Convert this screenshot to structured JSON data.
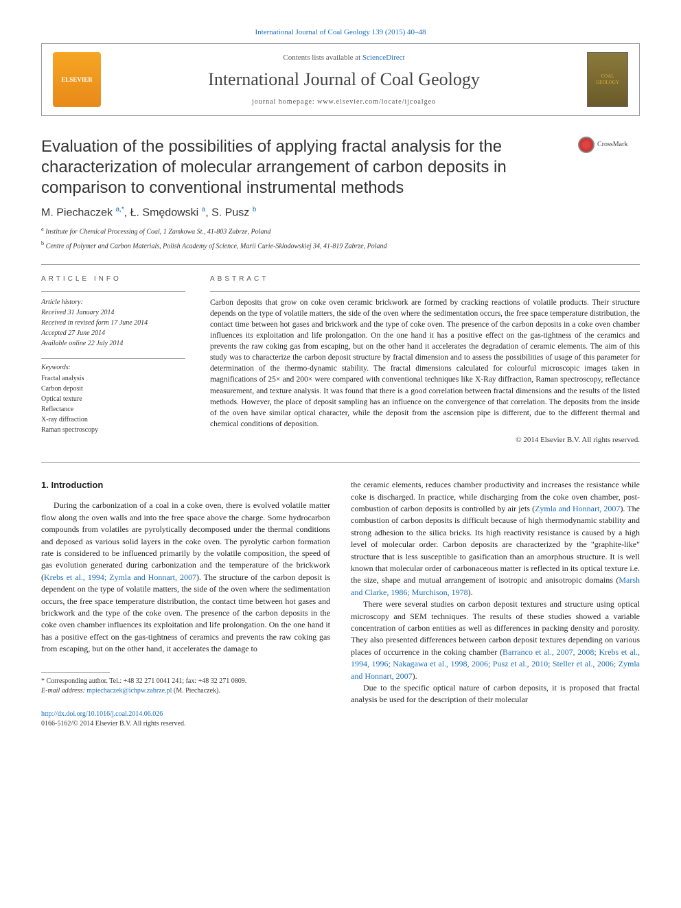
{
  "journal": {
    "top_ref": "International Journal of Coal Geology 139 (2015) 40–48",
    "contents_prefix": "Contents lists available at ",
    "contents_link": "ScienceDirect",
    "name": "International Journal of Coal Geology",
    "homepage_label": "journal homepage: www.elsevier.com/locate/ijcoalgeo",
    "elsevier_label": "ELSEVIER",
    "cover_alt_line1": "COAL",
    "cover_alt_line2": "GEOLOGY"
  },
  "crossmark_label": "CrossMark",
  "article": {
    "title": "Evaluation of the possibilities of applying fractal analysis for the characterization of molecular arrangement of carbon deposits in comparison to conventional instrumental methods",
    "authors_html": "M. Piechaczek <sup>a,*</sup>, Ł. Smędowski <sup>a</sup>, S. Pusz <sup>b</sup>",
    "affiliations": [
      "a  Institute for Chemical Processing of Coal, 1 Zamkowa St., 41-803 Zabrze, Poland",
      "b  Centre of Polymer and Carbon Materials, Polish Academy of Science, Marii Curie-Sklodowskiej 34, 41-819 Zabrze, Poland"
    ]
  },
  "info": {
    "section_label": "article info",
    "history_label": "Article history:",
    "history": [
      "Received 31 January 2014",
      "Received in revised form 17 June 2014",
      "Accepted 27 June 2014",
      "Available online 22 July 2014"
    ],
    "keywords_label": "Keywords:",
    "keywords": [
      "Fractal analysis",
      "Carbon deposit",
      "Optical texture",
      "Reflectance",
      "X-ray diffraction",
      "Raman spectroscopy"
    ]
  },
  "abstract": {
    "label": "abstract",
    "text": "Carbon deposits that grow on coke oven ceramic brickwork are formed by cracking reactions of volatile products. Their structure depends on the type of volatile matters, the side of the oven where the sedimentation occurs, the free space temperature distribution, the contact time between hot gases and brickwork and the type of coke oven. The presence of the carbon deposits in a coke oven chamber influences its exploitation and life prolongation. On the one hand it has a positive effect on the gas-tightness of the ceramics and prevents the raw coking gas from escaping, but on the other hand it accelerates the degradation of ceramic elements. The aim of this study was to characterize the carbon deposit structure by fractal dimension and to assess the possibilities of usage of this parameter for determination of the thermo-dynamic stability. The fractal dimensions calculated for colourful microscopic images taken in magnifications of 25× and 200× were compared with conventional techniques like X-Ray diffraction, Raman spectroscopy, reflectance measurement, and texture analysis. It was found that there is a good correlation between fractal dimensions and the results of the listed methods. However, the place of deposit sampling has an influence on the convergence of that correlation. The deposits from the inside of the oven have similar optical character, while the deposit from the ascension pipe is different, due to the different thermal and chemical conditions of deposition.",
    "copyright": "© 2014 Elsevier B.V. All rights reserved."
  },
  "body": {
    "intro_heading": "1. Introduction",
    "col1_paras": [
      "During the carbonization of a coal in a coke oven, there is evolved volatile matter flow along the oven walls and into the free space above the charge. Some hydrocarbon compounds from volatiles are pyrolytically decomposed under the thermal conditions and deposed as various solid layers in the coke oven. The pyrolytic carbon formation rate is considered to be influenced primarily by the volatile composition, the speed of gas evolution generated during carbonization and the temperature of the brickwork (<span class=\"ref-link\">Krebs et al., 1994; Zymla and Honnart, 2007</span>). The structure of the carbon deposit is dependent on the type of volatile matters, the side of the oven where the sedimentation occurs, the free space temperature distribution, the contact time between hot gases and brickwork and the type of the coke oven. The presence of the carbon deposits in the coke oven chamber influences its exploitation and life prolongation. On the one hand it has a positive effect on the gas-tightness of ceramics and prevents the raw coking gas from escaping, but on the other hand, it accelerates the damage to"
    ],
    "col2_paras": [
      "the ceramic elements, reduces chamber productivity and increases the resistance while coke is discharged. In practice, while discharging from the coke oven chamber, post-combustion of carbon deposits is controlled by air jets (<span class=\"ref-link\">Zymla and Honnart, 2007</span>). The combustion of carbon deposits is difficult because of high thermodynamic stability and strong adhesion to the silica bricks. Its high reactivity resistance is caused by a high level of molecular order. Carbon deposits are characterized by the \"graphite-like\" structure that is less susceptible to gasification than an amorphous structure. It is well known that molecular order of carbonaceous matter is reflected in its optical texture i.e. the size, shape and mutual arrangement of isotropic and anisotropic domains (<span class=\"ref-link\">Marsh and Clarke, 1986; Murchison, 1978</span>).",
      "There were several studies on carbon deposit textures and structure using optical microscopy and SEM techniques. The results of these studies showed a variable concentration of carbon entities as well as differences in packing density and porosity. They also presented differences between carbon deposit textures depending on various places of occurrence in the coking chamber (<span class=\"ref-link\">Barranco et al., 2007, 2008; Krebs et al., 1994, 1996; Nakagawa et al., 1998, 2006; Pusz et al., 2010; Steller et al., 2006; Zymla and Honnart, 2007</span>).",
      "Due to the specific optical nature of carbon deposits, it is proposed that fractal analysis be used for the description of their molecular"
    ]
  },
  "footnote": {
    "corresponding": "* Corresponding author. Tel.: +48 32 271 0041 241; fax: +48 32 271 0809.",
    "email_label": "E-mail address: ",
    "email": "mpiechaczek@ichpw.zabrze.pl",
    "email_author": " (M. Piechaczek)."
  },
  "footer": {
    "doi": "http://dx.doi.org/10.1016/j.coal.2014.06.026",
    "issn_line": "0166-5162/© 2014 Elsevier B.V. All rights reserved."
  },
  "colors": {
    "link": "#1a6db5",
    "text": "#222222",
    "border": "#999999"
  }
}
